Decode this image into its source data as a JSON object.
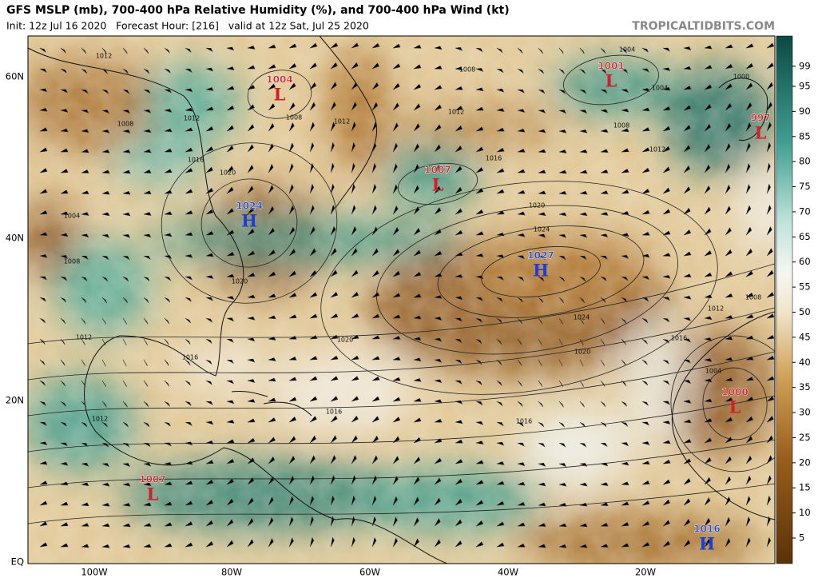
{
  "header": {
    "title": "GFS MSLP (mb), 700-400 hPa Relative Humidity (%), and 700-400 hPa Wind (kt)",
    "subtitle": "Init: 12z Jul 16 2020   Forecast Hour: [216]   valid at 12z Sat, Jul 25 2020",
    "watermark": "TROPICALTIDBITS.COM"
  },
  "map": {
    "lat_labels": [
      "60N",
      "40N",
      "20N",
      "EQ"
    ],
    "lon_labels": [
      "100W",
      "80W",
      "60W",
      "40W",
      "20W"
    ],
    "pressure_centers": [
      {
        "value": 1004,
        "type": "L"
      },
      {
        "value": 1001,
        "type": "L"
      },
      {
        "value": 997,
        "type": "L"
      },
      {
        "value": 1007,
        "type": "L"
      },
      {
        "value": 1024,
        "type": "H"
      },
      {
        "value": 1027,
        "type": "H"
      },
      {
        "value": 1000,
        "type": "L"
      },
      {
        "value": 1007,
        "type": "L"
      },
      {
        "value": 1016,
        "type": "H"
      }
    ],
    "contour_labels": [
      "1012",
      "1008",
      "1012",
      "1016",
      "1020",
      "1004",
      "1008",
      "1020",
      "1008",
      "1012",
      "1008",
      "1004",
      "1004",
      "1008",
      "1012",
      "1000",
      "1012",
      "1016",
      "1020",
      "1024",
      "1024",
      "1020",
      "1016",
      "1012",
      "1008",
      "1004",
      "1020",
      "1016",
      "1012",
      "1012",
      "1016",
      "1016"
    ]
  },
  "colorbar": {
    "ticks": [
      99,
      95,
      90,
      85,
      80,
      75,
      70,
      65,
      60,
      55,
      50,
      45,
      40,
      35,
      30,
      25,
      20,
      15,
      10,
      5
    ]
  }
}
